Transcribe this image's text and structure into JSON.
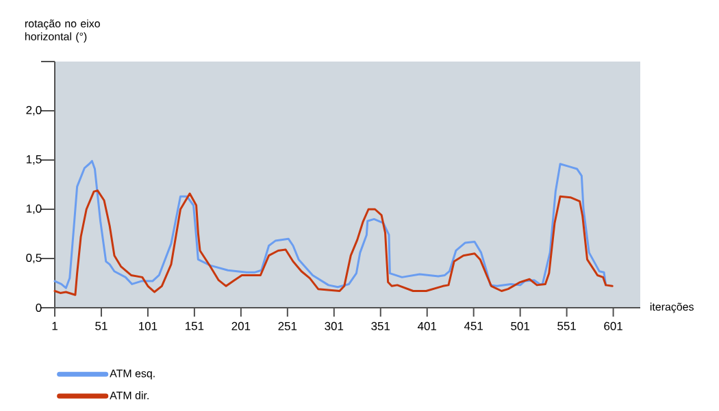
{
  "chart_data": {
    "type": "line",
    "xlabel": "iterações",
    "ylabel": "rotação no eixo horizontal (°)",
    "xlim": [
      1,
      630
    ],
    "ylim": [
      0,
      2.5
    ],
    "xticks": [
      1,
      51,
      101,
      151,
      201,
      251,
      301,
      351,
      401,
      451,
      501,
      551,
      601
    ],
    "yticks": [
      {
        "value": 0,
        "label": "0"
      },
      {
        "value": 0.5,
        "label": "0,5"
      },
      {
        "value": 1.0,
        "label": "1,0"
      },
      {
        "value": 1.5,
        "label": "1,5"
      },
      {
        "value": 2.0,
        "label": "2,0"
      },
      {
        "value": 2.5,
        "label": null
      }
    ],
    "legend": "bottom",
    "series": [
      {
        "name": "ATM esq.",
        "color": "#6a9df0",
        "x": [
          1,
          8,
          13,
          17,
          21,
          25,
          33,
          38,
          41,
          44,
          50,
          56,
          60,
          65,
          77,
          84,
          94,
          106,
          113,
          126,
          136,
          143,
          150,
          153,
          155,
          168,
          187,
          207,
          216,
          223,
          231,
          238,
          252,
          257,
          263,
          278,
          295,
          305,
          317,
          325,
          329,
          336,
          337,
          344,
          354,
          360,
          361,
          374,
          393,
          413,
          420,
          425,
          432,
          442,
          452,
          459,
          465,
          469,
          476,
          491,
          501,
          506,
          516,
          522,
          525,
          533,
          539,
          544,
          555,
          562,
          567,
          569,
          575,
          582,
          586,
          591,
          593
        ],
        "values": [
          0.27,
          0.24,
          0.2,
          0.3,
          0.76,
          1.23,
          1.42,
          1.46,
          1.49,
          1.41,
          0.88,
          0.47,
          0.44,
          0.37,
          0.31,
          0.24,
          0.27,
          0.27,
          0.33,
          0.65,
          1.13,
          1.13,
          1.04,
          0.72,
          0.49,
          0.43,
          0.38,
          0.36,
          0.36,
          0.38,
          0.63,
          0.68,
          0.7,
          0.63,
          0.49,
          0.33,
          0.23,
          0.21,
          0.24,
          0.35,
          0.56,
          0.74,
          0.88,
          0.9,
          0.86,
          0.74,
          0.35,
          0.31,
          0.34,
          0.32,
          0.33,
          0.37,
          0.58,
          0.66,
          0.67,
          0.56,
          0.37,
          0.23,
          0.22,
          0.24,
          0.23,
          0.27,
          0.28,
          0.24,
          0.24,
          0.56,
          1.18,
          1.46,
          1.43,
          1.41,
          1.34,
          1.0,
          0.56,
          0.44,
          0.37,
          0.36,
          0.23
        ]
      },
      {
        "name": "ATM dir.",
        "color": "#c8380e",
        "x": [
          1,
          7,
          13,
          23,
          25,
          29,
          35,
          43,
          47,
          54,
          60,
          65,
          72,
          83,
          95,
          101,
          108,
          116,
          126,
          136,
          146,
          153,
          155,
          157,
          168,
          177,
          185,
          194,
          202,
          222,
          231,
          241,
          249,
          257,
          266,
          275,
          284,
          307,
          312,
          319,
          326,
          332,
          338,
          345,
          352,
          356,
          359,
          363,
          369,
          386,
          400,
          418,
          424,
          430,
          440,
          452,
          458,
          465,
          470,
          481,
          488,
          501,
          511,
          519,
          528,
          532,
          538,
          544,
          555,
          565,
          568,
          573,
          582,
          584,
          590,
          593,
          600
        ],
        "values": [
          0.17,
          0.15,
          0.16,
          0.13,
          0.35,
          0.72,
          1.0,
          1.18,
          1.19,
          1.09,
          0.83,
          0.53,
          0.42,
          0.33,
          0.31,
          0.22,
          0.16,
          0.22,
          0.44,
          1.0,
          1.16,
          1.04,
          0.76,
          0.58,
          0.42,
          0.28,
          0.22,
          0.28,
          0.33,
          0.33,
          0.53,
          0.58,
          0.59,
          0.47,
          0.37,
          0.3,
          0.19,
          0.17,
          0.22,
          0.53,
          0.69,
          0.87,
          1.0,
          1.0,
          0.94,
          0.76,
          0.26,
          0.22,
          0.23,
          0.17,
          0.17,
          0.22,
          0.23,
          0.47,
          0.53,
          0.55,
          0.49,
          0.33,
          0.22,
          0.17,
          0.19,
          0.26,
          0.29,
          0.23,
          0.24,
          0.35,
          0.86,
          1.13,
          1.12,
          1.08,
          0.93,
          0.49,
          0.36,
          0.33,
          0.31,
          0.23,
          0.22
        ]
      }
    ]
  }
}
